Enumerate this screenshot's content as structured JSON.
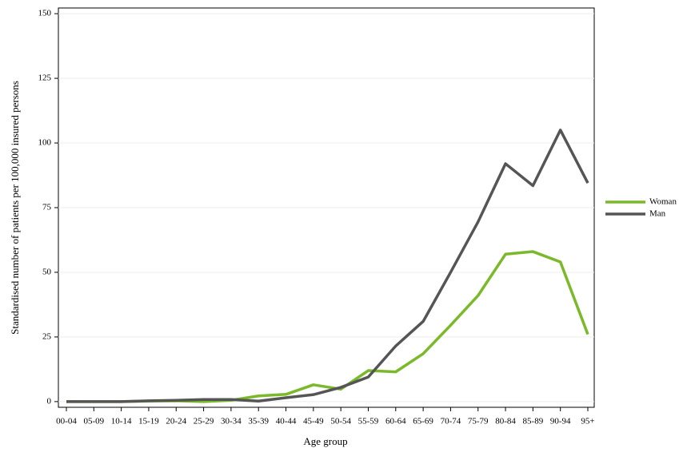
{
  "chart_data": {
    "type": "line",
    "xlabel": "Age group",
    "ylabel": "Standardised number of patients per 100,000 insured persons",
    "categories": [
      "00-04",
      "05-09",
      "10-14",
      "15-19",
      "20-24",
      "25-29",
      "30-34",
      "35-39",
      "40-44",
      "45-49",
      "50-54",
      "55-59",
      "60-64",
      "65-69",
      "70-74",
      "75-79",
      "80-84",
      "85-89",
      "90-94",
      "95+"
    ],
    "series": [
      {
        "name": "Woman",
        "color": "#7ab929",
        "values": [
          0,
          0,
          0,
          0.2,
          0.3,
          0,
          0.5,
          2.2,
          2.8,
          6.5,
          4.8,
          12,
          11.5,
          18.5,
          29.5,
          41,
          57,
          58,
          54,
          26
        ]
      },
      {
        "name": "Man",
        "color": "#555555",
        "values": [
          0,
          0,
          0,
          0.3,
          0.5,
          0.8,
          0.8,
          0.2,
          1.5,
          2.7,
          5.5,
          9.5,
          21.5,
          31,
          50,
          69.5,
          92,
          83.5,
          105,
          84.5
        ]
      }
    ],
    "ylim": [
      -2.2,
      152.2
    ],
    "yticks": [
      0,
      25,
      50,
      75,
      100,
      125,
      150
    ],
    "grid": true,
    "legend": "right"
  }
}
